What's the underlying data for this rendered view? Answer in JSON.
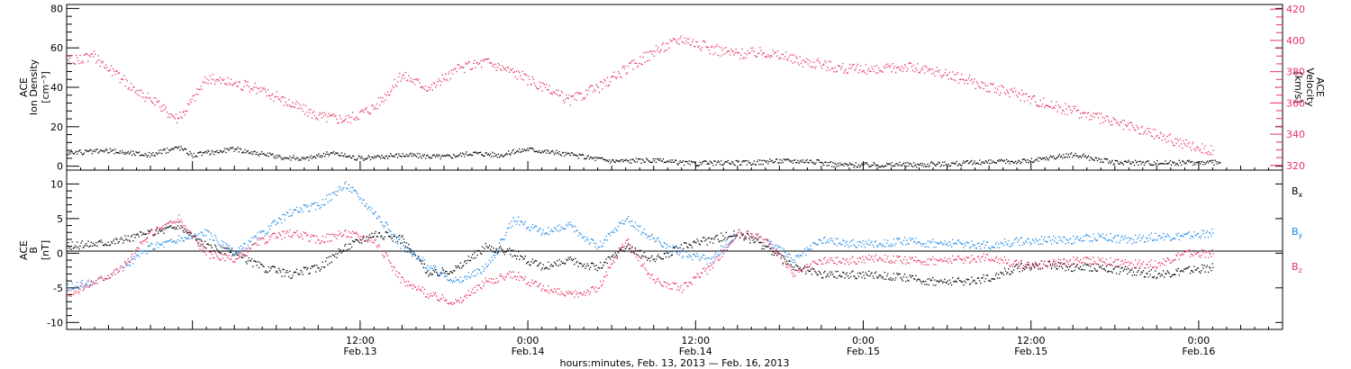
{
  "chart_data": [
    {
      "type": "scatter",
      "panel": "top",
      "x_axis": {
        "unit": "hours since Feb 13 00:00 UT",
        "range": [
          -9,
          78
        ],
        "tick_labels": [
          {
            "time": "12:00",
            "date": "Feb.13"
          },
          {
            "time": "0:00",
            "date": "Feb.14"
          },
          {
            "time": "12:00",
            "date": "Feb.14"
          },
          {
            "time": "0:00",
            "date": "Feb.15"
          },
          {
            "time": "12:00",
            "date": "Feb.15"
          },
          {
            "time": "0:00",
            "date": "Feb.16"
          }
        ],
        "tick_hours": [
          12,
          24,
          36,
          48,
          60,
          72
        ]
      },
      "left_axis": {
        "label_lines": [
          "ACE",
          "Ion Density"
        ],
        "unit_label": "[cm⁻³]",
        "range": [
          -2,
          82
        ],
        "ticks": [
          0,
          20,
          40,
          60,
          80
        ],
        "color": "#000000"
      },
      "right_axis": {
        "label_lines": [
          "ACE",
          "Velocity"
        ],
        "unit_label": "[km/s]",
        "range": [
          317,
          423
        ],
        "ticks": [
          320,
          340,
          360,
          380,
          400,
          420
        ],
        "color": "#e8305e"
      },
      "series": [
        {
          "name": "Ion Density",
          "axis": "left",
          "color": "#000000",
          "x": [
            -9,
            -6,
            -3,
            -1,
            0,
            3,
            6,
            8,
            10,
            12,
            15,
            18,
            20,
            22,
            24,
            27,
            30,
            33,
            36,
            38,
            40,
            42,
            44,
            46,
            48,
            52,
            56,
            60,
            63,
            66,
            70,
            72,
            73.5
          ],
          "y": [
            7,
            8,
            6,
            10,
            6,
            9,
            5,
            4,
            7,
            4,
            6,
            5,
            7,
            6,
            9,
            6,
            3,
            3,
            1.5,
            2,
            2,
            3,
            3,
            1,
            1,
            1,
            2,
            3,
            6,
            2,
            2,
            2,
            2
          ]
        },
        {
          "name": "Velocity",
          "axis": "right",
          "color": "#e8305e",
          "x": [
            -9,
            -7,
            -5,
            -3,
            -1,
            1,
            3,
            5,
            7,
            9,
            11,
            13,
            15,
            17,
            19,
            21,
            23,
            25,
            27,
            29,
            31,
            33,
            35,
            37,
            39,
            41,
            43,
            45,
            47,
            49,
            51,
            53,
            55,
            57,
            59,
            61,
            63,
            65,
            67,
            69,
            71,
            73
          ],
          "y": [
            388,
            390,
            375,
            362,
            350,
            376,
            373,
            368,
            360,
            352,
            350,
            358,
            378,
            370,
            382,
            387,
            380,
            370,
            362,
            370,
            382,
            393,
            402,
            395,
            392,
            393,
            388,
            385,
            382,
            381,
            384,
            380,
            376,
            370,
            366,
            360,
            355,
            350,
            345,
            340,
            334,
            330
          ]
        }
      ]
    },
    {
      "type": "scatter",
      "panel": "bottom",
      "x_axis": {
        "unit": "hours since Feb 13 00:00 UT",
        "range": [
          -9,
          78
        ],
        "title": "hours:minutes, Feb. 13, 2013 — Feb. 16, 2013"
      },
      "y_axis": {
        "label_lines": [
          "ACE",
          "B"
        ],
        "unit_label": "[nT]",
        "range": [
          -11,
          12
        ],
        "ticks": [
          -10,
          -5,
          0,
          5,
          10
        ],
        "zero_line": true
      },
      "legend": {
        "placement": "right",
        "entries": [
          {
            "base": "B",
            "sub": "x",
            "color": "#000000"
          },
          {
            "base": "B",
            "sub": "y",
            "color": "#1e88e5"
          },
          {
            "base": "B",
            "sub": "z",
            "color": "#e8305e"
          }
        ]
      },
      "series": [
        {
          "name": "Bx",
          "color": "#000000",
          "x": [
            -9,
            -7,
            -5,
            -3,
            -1,
            1,
            3,
            5,
            7,
            9,
            11,
            13,
            15,
            17,
            19,
            21,
            23,
            25,
            27,
            29,
            31,
            33,
            35,
            37,
            39,
            41,
            43,
            45,
            47,
            49,
            51,
            53,
            55,
            57,
            59,
            61,
            63,
            65,
            67,
            69,
            71,
            73
          ],
          "y": [
            1,
            1.5,
            2,
            3,
            4,
            1,
            0,
            -2,
            -3,
            -2,
            1,
            3,
            2,
            -3,
            -2,
            1,
            0,
            -2,
            -1,
            -2,
            1,
            -1,
            1,
            2,
            3,
            1,
            -2,
            -3,
            -3,
            -3,
            -3.5,
            -4,
            -4,
            -3.5,
            -2,
            -1.5,
            -2,
            -2,
            -2.5,
            -3,
            -2.5,
            -2
          ]
        },
        {
          "name": "By",
          "color": "#1e88e5",
          "x": [
            -9,
            -7,
            -5,
            -3,
            -1,
            1,
            3,
            5,
            7,
            9,
            11,
            13,
            15,
            17,
            19,
            21,
            23,
            25,
            27,
            29,
            31,
            33,
            35,
            37,
            39,
            41,
            43,
            45,
            47,
            49,
            51,
            53,
            55,
            57,
            59,
            61,
            63,
            65,
            67,
            69,
            71,
            73
          ],
          "y": [
            -5,
            -4,
            -2,
            1,
            2,
            3,
            0,
            3,
            6,
            7,
            10,
            6,
            1,
            -2,
            -4,
            -2,
            5,
            3,
            4,
            1,
            5,
            2,
            0,
            -1,
            3,
            2,
            -1,
            2,
            1.5,
            1.5,
            1.8,
            1.5,
            1.5,
            1.2,
            1.8,
            2,
            2,
            2.5,
            2,
            2.5,
            2.5,
            3
          ]
        },
        {
          "name": "Bz",
          "color": "#e8305e",
          "x": [
            -9,
            -7,
            -5,
            -3,
            -1,
            1,
            3,
            5,
            7,
            9,
            11,
            13,
            15,
            17,
            19,
            21,
            23,
            25,
            27,
            29,
            31,
            33,
            35,
            37,
            39,
            41,
            43,
            45,
            47,
            49,
            51,
            53,
            55,
            57,
            59,
            61,
            63,
            65,
            67,
            69,
            71,
            73
          ],
          "y": [
            -6,
            -4,
            -2,
            3,
            5,
            0,
            -1,
            2,
            3,
            2,
            3,
            2,
            -4,
            -6,
            -7,
            -4,
            -3,
            -5,
            -6,
            -5,
            2,
            -4,
            -5,
            -2,
            3,
            2,
            -3,
            -1,
            -1,
            -0.5,
            -1,
            -1,
            -0.8,
            -0.5,
            -1.5,
            -1.5,
            -1,
            -1,
            -1.5,
            -1.5,
            0,
            0
          ]
        }
      ]
    }
  ]
}
